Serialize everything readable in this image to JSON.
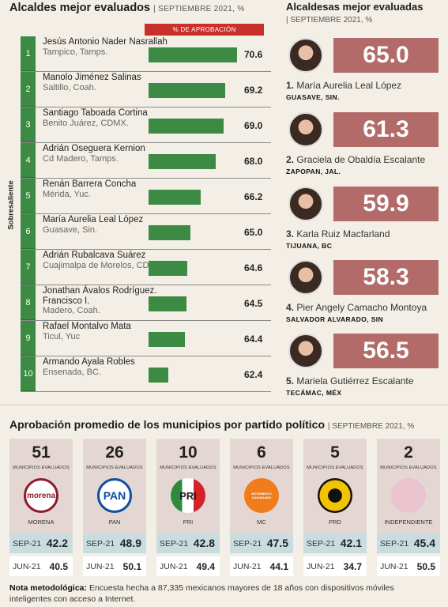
{
  "alcaldes": {
    "title": "Alcaldes mejor evaluados",
    "subtitle": "| SEPTIEMBRE 2021, %",
    "pct_header": "% DE APROBACIÓN",
    "side_label": "Sobresaliente",
    "rows": [
      {
        "rank": "1",
        "name": "Jesús Antonio Nader Nasrallah",
        "place": "Tampico, Tamps.",
        "value": "70.6",
        "score": 70.6
      },
      {
        "rank": "2",
        "name": "Manolo Jiménez Salinas",
        "place": "Saltillo, Coah.",
        "value": "69.2",
        "score": 69.2
      },
      {
        "rank": "3",
        "name": "Santiago Taboada Cortina",
        "place": "Benito Juárez, CDMX.",
        "value": "69.0",
        "score": 69.0
      },
      {
        "rank": "4",
        "name": "Adrián Oseguera Kernion",
        "place": "Cd Madero, Tamps.",
        "value": "68.0",
        "score": 68.0
      },
      {
        "rank": "5",
        "name": "Renán Barrera Concha",
        "place": "Mérida, Yuc.",
        "value": "66.2",
        "score": 66.2
      },
      {
        "rank": "6",
        "name": "María Aurelia Leal López",
        "place": "Guasave, Sin.",
        "value": "65.0",
        "score": 65.0
      },
      {
        "rank": "7",
        "name": "Adrián Rubalcava Suárez",
        "place": "Cuajimalpa de Morelos, CDMX.",
        "value": "64.6",
        "score": 64.6
      },
      {
        "rank": "8",
        "name": "Jonathan Ávalos Rodríguez. Francisco I.",
        "place": "Madero, Coah.",
        "value": "64.5",
        "score": 64.5
      },
      {
        "rank": "9",
        "name": "Rafael Montalvo Mata",
        "place": "Ticul, Yuc",
        "value": "64.4",
        "score": 64.4
      },
      {
        "rank": "10",
        "name": "Armando Ayala Robles",
        "place": "Ensenada, BC.",
        "value": "62.4",
        "score": 62.4
      }
    ]
  },
  "alcaldesas": {
    "title": "Alcaldesas mejor evaluadas",
    "subtitle": "| SEPTIEMBRE 2021, %",
    "items": [
      {
        "rank": "1.",
        "name": "María Aurelia Leal López",
        "city": "GUASAVE, SIN.",
        "score": "65.0"
      },
      {
        "rank": "2.",
        "name": "Graciela de Obaldía Escalante",
        "city": "ZAPOPAN, JAL.",
        "score": "61.3"
      },
      {
        "rank": "3.",
        "name": "Karla Ruiz Macfarland",
        "city": "TIJUANA, BC",
        "score": "59.9"
      },
      {
        "rank": "4.",
        "name": "Pier Angely Camacho Montoya",
        "city": "SALVADOR ALVARADO, SIN",
        "score": "58.3"
      },
      {
        "rank": "5.",
        "name": "Mariela Gutiérrez Escalante",
        "city": "TECÁMAC, MÉX",
        "score": "56.5"
      }
    ]
  },
  "partidos": {
    "title": "Aprobación promedio de los municipios por partido político",
    "subtitle": "| SEPTIEMBRE 2021, %",
    "municipios_label": "MUNICIPIOS EVALUADOS",
    "sep_label": "SEP-21",
    "jun_label": "JUN-21",
    "items": [
      {
        "count": "51",
        "name": "MORENA",
        "logo_text": "morena",
        "logo_color": "#8e1b2b",
        "sep": "42.2",
        "jun": "40.5"
      },
      {
        "count": "26",
        "name": "PAN",
        "logo_text": "PAN",
        "logo_color": "#0b4ea2",
        "sep": "48.9",
        "jun": "50.1"
      },
      {
        "count": "10",
        "name": "PRI",
        "logo_text": "PRI",
        "logo_color": "#1a1a1a",
        "sep": "42.8",
        "jun": "49.4"
      },
      {
        "count": "6",
        "name": "MC",
        "logo_text": "MOVIMIENTO CIUDADANO",
        "logo_color": "#f07c1c",
        "sep": "47.5",
        "jun": "44.1"
      },
      {
        "count": "5",
        "name": "PRD",
        "logo_text": "",
        "logo_color": "#f2c300",
        "sep": "42.1",
        "jun": "34.7"
      },
      {
        "count": "2",
        "name": "INDEPENDIENTE",
        "logo_text": "",
        "logo_color": "#e9c4cf",
        "sep": "45.4",
        "jun": "50.5"
      }
    ]
  },
  "nota": {
    "label": "Nota metodológica:",
    "text": "Encuesta hecha a 87,335 mexicanos mayores de 18 años con dispositivos móviles inteligentes con acceso a Internet."
  }
}
